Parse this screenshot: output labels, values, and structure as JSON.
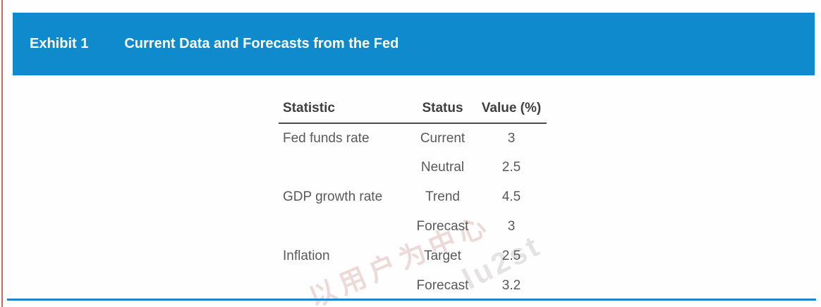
{
  "header": {
    "exhibit_label": "Exhibit 1",
    "title": "Current Data and Forecasts from the Fed",
    "bg_color": "#0f8bcd",
    "text_color": "#ffffff"
  },
  "table": {
    "columns": [
      "Statistic",
      "Status",
      "Value (%)"
    ],
    "rows": [
      {
        "statistic": "Fed funds rate",
        "status": "Current",
        "value": "3"
      },
      {
        "statistic": "",
        "status": "Neutral",
        "value": "2.5"
      },
      {
        "statistic": "GDP growth rate",
        "status": "Trend",
        "value": "4.5"
      },
      {
        "statistic": "",
        "status": "Forecast",
        "value": "3"
      },
      {
        "statistic": "Inflation",
        "status": "Target",
        "value": "2.5"
      },
      {
        "statistic": "",
        "status": "Forecast",
        "value": "3.2"
      }
    ]
  },
  "watermark": {
    "cn_text": "以用户为中心",
    "latin_text": "lu2st"
  },
  "decorations": {
    "left_accent_color": "#c76b60",
    "bottom_rule_color": "#1e86c6"
  }
}
